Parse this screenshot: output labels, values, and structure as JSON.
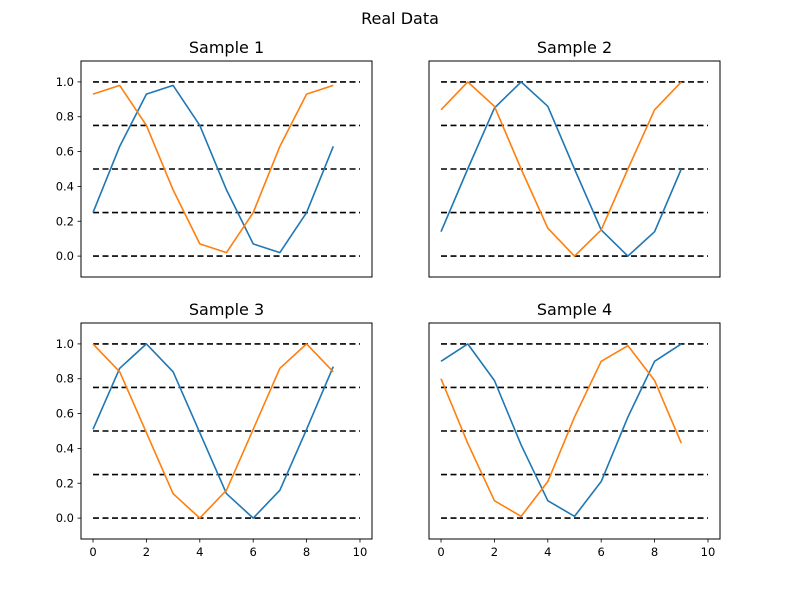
{
  "figure": {
    "title": "Real Data"
  },
  "chart_data": [
    {
      "type": "line",
      "title": "Sample 1",
      "x": [
        0,
        1,
        2,
        3,
        4,
        5,
        6,
        7,
        8,
        9
      ],
      "series": [
        {
          "color": "#1f77b4",
          "values": [
            0.25,
            0.63,
            0.93,
            0.98,
            0.75,
            0.38,
            0.07,
            0.02,
            0.25,
            0.63
          ]
        },
        {
          "color": "#ff7f0e",
          "values": [
            0.93,
            0.98,
            0.75,
            0.38,
            0.07,
            0.02,
            0.25,
            0.63,
            0.93,
            0.98
          ]
        }
      ],
      "reference_lines": [
        0.0,
        0.25,
        0.5,
        0.75,
        1.0
      ],
      "xlim": [
        -0.45,
        10.45
      ],
      "ylim": [
        -0.12,
        1.12
      ],
      "show_yticks": true,
      "show_xticks": false
    },
    {
      "type": "line",
      "title": "Sample 2",
      "x": [
        0,
        1,
        2,
        3,
        4,
        5,
        6,
        7,
        8,
        9
      ],
      "series": [
        {
          "color": "#1f77b4",
          "values": [
            0.14,
            0.5,
            0.85,
            1.0,
            0.86,
            0.5,
            0.15,
            0.0,
            0.14,
            0.5
          ]
        },
        {
          "color": "#ff7f0e",
          "values": [
            0.84,
            1.0,
            0.86,
            0.5,
            0.16,
            0.0,
            0.15,
            0.5,
            0.84,
            1.0
          ]
        }
      ],
      "reference_lines": [
        0.0,
        0.25,
        0.5,
        0.75,
        1.0
      ],
      "xlim": [
        -0.45,
        10.45
      ],
      "ylim": [
        -0.12,
        1.12
      ],
      "show_yticks": false,
      "show_xticks": false
    },
    {
      "type": "line",
      "title": "Sample 3",
      "x": [
        0,
        1,
        2,
        3,
        4,
        5,
        6,
        7,
        8,
        9
      ],
      "series": [
        {
          "color": "#1f77b4",
          "values": [
            0.51,
            0.86,
            1.0,
            0.84,
            0.49,
            0.14,
            0.0,
            0.16,
            0.51,
            0.87
          ]
        },
        {
          "color": "#ff7f0e",
          "values": [
            1.0,
            0.84,
            0.49,
            0.14,
            0.0,
            0.16,
            0.51,
            0.86,
            1.0,
            0.84
          ]
        }
      ],
      "reference_lines": [
        0.0,
        0.25,
        0.5,
        0.75,
        1.0
      ],
      "xlim": [
        -0.45,
        10.45
      ],
      "ylim": [
        -0.12,
        1.12
      ],
      "show_yticks": true,
      "show_xticks": true
    },
    {
      "type": "line",
      "title": "Sample 4",
      "x": [
        0,
        1,
        2,
        3,
        4,
        5,
        6,
        7,
        8,
        9
      ],
      "series": [
        {
          "color": "#1f77b4",
          "values": [
            0.9,
            1.0,
            0.79,
            0.42,
            0.1,
            0.01,
            0.21,
            0.58,
            0.9,
            1.0
          ]
        },
        {
          "color": "#ff7f0e",
          "values": [
            0.8,
            0.43,
            0.1,
            0.01,
            0.21,
            0.58,
            0.9,
            0.99,
            0.79,
            0.43
          ]
        }
      ],
      "reference_lines": [
        0.0,
        0.25,
        0.5,
        0.75,
        1.0
      ],
      "xlim": [
        -0.45,
        10.45
      ],
      "ylim": [
        -0.12,
        1.12
      ],
      "show_yticks": false,
      "show_xticks": true
    }
  ],
  "axes": {
    "x_ticks": [
      "0",
      "2",
      "4",
      "6",
      "8",
      "10"
    ],
    "y_ticks": [
      "0.0",
      "0.2",
      "0.4",
      "0.6",
      "0.8",
      "1.0"
    ]
  },
  "colors": {
    "reference_line": "#000000",
    "axis": "#000000"
  }
}
